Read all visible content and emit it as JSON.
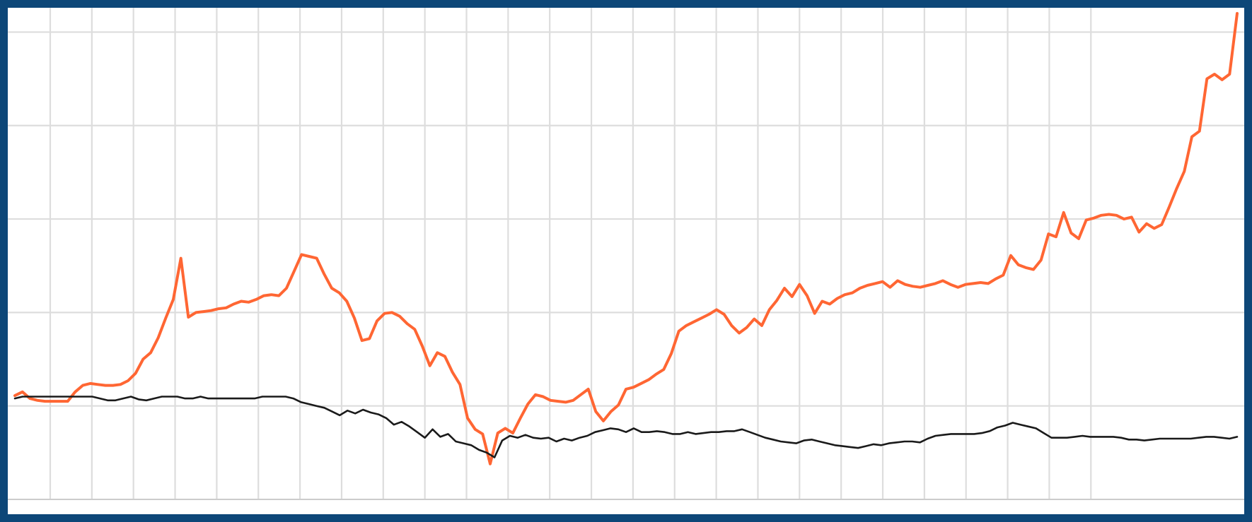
{
  "chart_data": {
    "type": "line",
    "title": "",
    "xlabel": "",
    "ylabel": "",
    "grid": true,
    "legend": "none",
    "xlim": [
      0,
      152
    ],
    "ylim": [
      0,
      5.2
    ],
    "vertical_gridlines": 26,
    "horizontal_gridlines": [
      1,
      2,
      3,
      4,
      5
    ],
    "colors": {
      "grid": "#dddddd",
      "axis": "#cccccc"
    },
    "series": [
      {
        "color": "#ff6633",
        "values": [
          1.11,
          1.15,
          1.08,
          1.06,
          1.05,
          1.05,
          1.05,
          1.05,
          1.15,
          1.22,
          1.24,
          1.23,
          1.22,
          1.22,
          1.23,
          1.27,
          1.35,
          1.5,
          1.57,
          1.73,
          1.94,
          2.14,
          2.58,
          1.95,
          2.0,
          2.01,
          2.02,
          2.04,
          2.05,
          2.09,
          2.12,
          2.11,
          2.14,
          2.18,
          2.19,
          2.18,
          2.26,
          2.44,
          2.62,
          2.6,
          2.58,
          2.41,
          2.26,
          2.21,
          2.12,
          1.94,
          1.7,
          1.72,
          1.91,
          1.99,
          2.0,
          1.96,
          1.88,
          1.82,
          1.64,
          1.43,
          1.57,
          1.53,
          1.36,
          1.23,
          0.87,
          0.75,
          0.7,
          0.38,
          0.71,
          0.76,
          0.71,
          0.87,
          1.02,
          1.12,
          1.1,
          1.06,
          1.05,
          1.04,
          1.06,
          1.12,
          1.18,
          0.94,
          0.84,
          0.94,
          1.01,
          1.18,
          1.2,
          1.24,
          1.28,
          1.34,
          1.39,
          1.56,
          1.8,
          1.86,
          1.9,
          1.94,
          1.98,
          2.03,
          1.98,
          1.86,
          1.78,
          1.84,
          1.93,
          1.86,
          2.03,
          2.13,
          2.26,
          2.17,
          2.3,
          2.18,
          1.99,
          2.12,
          2.09,
          2.15,
          2.19,
          2.21,
          2.26,
          2.29,
          2.31,
          2.33,
          2.27,
          2.34,
          2.3,
          2.28,
          2.27,
          2.29,
          2.31,
          2.34,
          2.3,
          2.27,
          2.3,
          2.31,
          2.32,
          2.31,
          2.36,
          2.4,
          2.61,
          2.51,
          2.48,
          2.46,
          2.56,
          2.84,
          2.81,
          3.07,
          2.85,
          2.79,
          2.99,
          3.01,
          3.04,
          3.05,
          3.04,
          3.0,
          3.02,
          2.86,
          2.95,
          2.9,
          2.94,
          3.13,
          3.33,
          3.51,
          3.88,
          3.94,
          4.5,
          4.55,
          4.49,
          4.55,
          5.2
        ]
      },
      {
        "color": "#1a1a1a",
        "values": [
          1.08,
          1.1,
          1.1,
          1.1,
          1.1,
          1.1,
          1.1,
          1.1,
          1.1,
          1.1,
          1.1,
          1.08,
          1.06,
          1.06,
          1.08,
          1.1,
          1.07,
          1.06,
          1.08,
          1.1,
          1.1,
          1.1,
          1.08,
          1.08,
          1.1,
          1.08,
          1.08,
          1.08,
          1.08,
          1.08,
          1.08,
          1.08,
          1.1,
          1.1,
          1.1,
          1.1,
          1.08,
          1.04,
          1.02,
          1.0,
          0.98,
          0.94,
          0.9,
          0.95,
          0.92,
          0.96,
          0.93,
          0.91,
          0.87,
          0.8,
          0.83,
          0.78,
          0.72,
          0.66,
          0.75,
          0.67,
          0.7,
          0.62,
          0.6,
          0.58,
          0.53,
          0.5,
          0.45,
          0.63,
          0.68,
          0.66,
          0.69,
          0.66,
          0.65,
          0.66,
          0.62,
          0.65,
          0.63,
          0.66,
          0.68,
          0.72,
          0.74,
          0.76,
          0.75,
          0.72,
          0.76,
          0.72,
          0.72,
          0.73,
          0.72,
          0.7,
          0.7,
          0.72,
          0.7,
          0.71,
          0.72,
          0.72,
          0.73,
          0.73,
          0.75,
          0.72,
          0.69,
          0.66,
          0.64,
          0.62,
          0.61,
          0.6,
          0.63,
          0.64,
          0.62,
          0.6,
          0.58,
          0.57,
          0.56,
          0.55,
          0.57,
          0.59,
          0.58,
          0.6,
          0.61,
          0.62,
          0.62,
          0.61,
          0.65,
          0.68,
          0.69,
          0.7,
          0.7,
          0.7,
          0.7,
          0.71,
          0.73,
          0.77,
          0.79,
          0.82,
          0.8,
          0.78,
          0.76,
          0.71,
          0.66,
          0.66,
          0.66,
          0.67,
          0.68,
          0.67,
          0.67,
          0.67,
          0.67,
          0.66,
          0.64,
          0.64,
          0.63,
          0.64,
          0.65,
          0.65,
          0.65,
          0.65,
          0.65,
          0.66,
          0.67,
          0.67,
          0.66,
          0.65,
          0.67
        ]
      }
    ]
  }
}
